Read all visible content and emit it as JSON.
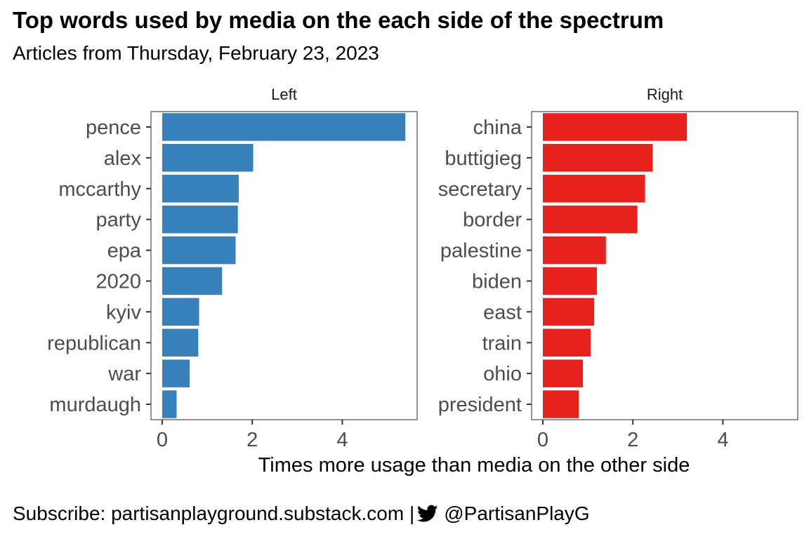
{
  "title": "Top words used by media on the each side of the spectrum",
  "subtitle": "Articles from Thursday, February 23, 2023",
  "footer": {
    "subscribe": "Subscribe: partisanplayground.substack.com |",
    "handle": "@PartisanPlayG",
    "icon": "twitter-bird-icon"
  },
  "chart_data": {
    "type": "bar",
    "orientation": "horizontal",
    "xlabel": "Times more usage than media on the other side",
    "xlim": [
      0,
      5.6
    ],
    "xticks": [
      0,
      2,
      4
    ],
    "grid": false,
    "panels": [
      {
        "name": "Left",
        "color": "#3880BA",
        "categories": [
          "pence",
          "alex",
          "mccarthy",
          "party",
          "epa",
          "2020",
          "kyiv",
          "republican",
          "war",
          "murdaugh"
        ],
        "values": [
          5.4,
          2.02,
          1.7,
          1.68,
          1.63,
          1.33,
          0.82,
          0.8,
          0.61,
          0.32
        ]
      },
      {
        "name": "Right",
        "color": "#E6211E",
        "categories": [
          "china",
          "buttigieg",
          "secretary",
          "border",
          "palestine",
          "biden",
          "east",
          "train",
          "ohio",
          "president"
        ],
        "values": [
          3.2,
          2.44,
          2.27,
          2.1,
          1.4,
          1.2,
          1.14,
          1.06,
          0.89,
          0.8
        ]
      }
    ]
  }
}
